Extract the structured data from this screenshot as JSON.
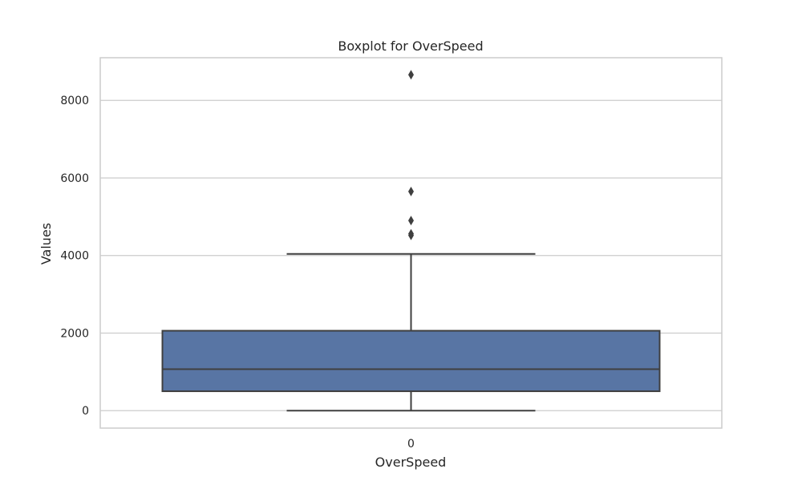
{
  "chart_data": {
    "type": "boxplot",
    "title": "Boxplot for OverSpeed",
    "xlabel": "OverSpeed",
    "ylabel": "Values",
    "categories": [
      "0"
    ],
    "ylim": [
      -450,
      9100
    ],
    "yticks": [
      0,
      2000,
      4000,
      6000,
      8000
    ],
    "grid": true,
    "box": {
      "whisker_low": 0,
      "q1": 500,
      "median": 1070,
      "q3": 2060,
      "whisker_high": 4040,
      "outliers": [
        4520,
        4560,
        4900,
        5650,
        8660
      ]
    },
    "colors": {
      "box_fill": "#5875a4",
      "line": "#3f3f3f",
      "grid": "#cccccc",
      "frame": "#cccccc"
    }
  }
}
